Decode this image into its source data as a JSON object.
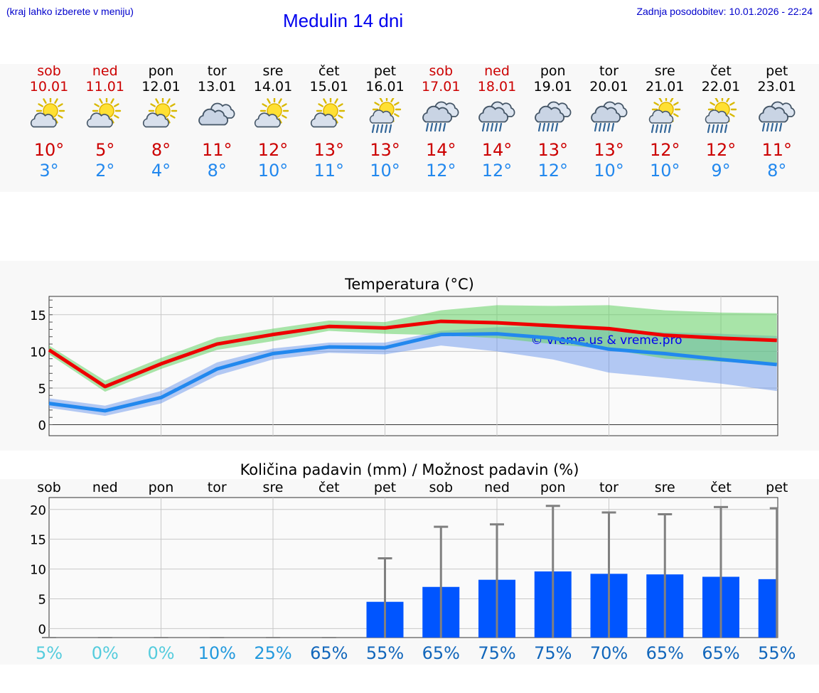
{
  "header": {
    "hint": "(kraj lahko izberete v meniju)",
    "title": "Medulin 14 dni",
    "updated": "Zadnja posodobitev: 10.01.2026 - 22:24"
  },
  "colors": {
    "weekend": "#cc0000",
    "weekday": "#000000",
    "tmax": "#cc0000",
    "tmin": "#2288ee"
  },
  "days": [
    {
      "name": "sob",
      "date": "10.01",
      "weekend": true,
      "icon": "sun-cloud-icon",
      "max": "10°",
      "min": "3°"
    },
    {
      "name": "ned",
      "date": "11.01",
      "weekend": true,
      "icon": "sun-cloud-icon",
      "max": "5°",
      "min": "2°"
    },
    {
      "name": "pon",
      "date": "12.01",
      "weekend": false,
      "icon": "sun-cloud-icon",
      "max": "8°",
      "min": "4°"
    },
    {
      "name": "tor",
      "date": "13.01",
      "weekend": false,
      "icon": "cloudy-icon",
      "max": "11°",
      "min": "8°"
    },
    {
      "name": "sre",
      "date": "14.01",
      "weekend": false,
      "icon": "sun-cloud-icon",
      "max": "12°",
      "min": "10°"
    },
    {
      "name": "čet",
      "date": "15.01",
      "weekend": false,
      "icon": "sun-cloud-icon",
      "max": "13°",
      "min": "11°"
    },
    {
      "name": "pet",
      "date": "16.01",
      "weekend": false,
      "icon": "sun-cloud-rain-icon",
      "max": "13°",
      "min": "10°"
    },
    {
      "name": "sob",
      "date": "17.01",
      "weekend": true,
      "icon": "cloud-rain-icon",
      "max": "14°",
      "min": "12°"
    },
    {
      "name": "ned",
      "date": "18.01",
      "weekend": true,
      "icon": "cloud-rain-icon",
      "max": "14°",
      "min": "12°"
    },
    {
      "name": "pon",
      "date": "19.01",
      "weekend": false,
      "icon": "cloud-rain-icon",
      "max": "13°",
      "min": "12°"
    },
    {
      "name": "tor",
      "date": "20.01",
      "weekend": false,
      "icon": "cloud-rain-icon",
      "max": "13°",
      "min": "10°"
    },
    {
      "name": "sre",
      "date": "21.01",
      "weekend": false,
      "icon": "sun-cloud-rain-icon",
      "max": "12°",
      "min": "10°"
    },
    {
      "name": "čet",
      "date": "22.01",
      "weekend": false,
      "icon": "sun-cloud-rain-icon",
      "max": "12°",
      "min": "9°"
    },
    {
      "name": "pet",
      "date": "23.01",
      "weekend": false,
      "icon": "cloud-rain-icon",
      "max": "11°",
      "min": "8°"
    }
  ],
  "chart_data": [
    {
      "type": "line",
      "title": "Temperatura (°C)",
      "watermark": "© vreme.us & vreme.pro",
      "ylim": [
        -1.5,
        17.5
      ],
      "yticks": [
        0,
        5,
        10,
        15
      ],
      "x": [
        0,
        1,
        2,
        3,
        4,
        5,
        6,
        7,
        8,
        9,
        10,
        11,
        12,
        13
      ],
      "series": [
        {
          "name": "max",
          "color": "#ee0000",
          "values": [
            10.2,
            5.2,
            8.3,
            11.0,
            12.3,
            13.4,
            13.2,
            14.1,
            13.9,
            13.5,
            13.1,
            12.2,
            11.8,
            11.5
          ],
          "band_low": [
            9.6,
            4.5,
            7.6,
            10.2,
            11.4,
            12.8,
            12.4,
            12.2,
            11.8,
            11.0,
            10.3,
            9.0,
            8.6,
            8.2
          ],
          "band_high": [
            10.8,
            6.0,
            9.1,
            11.9,
            13.1,
            14.2,
            14.0,
            15.6,
            16.3,
            16.2,
            16.3,
            15.6,
            15.3,
            15.2
          ]
        },
        {
          "name": "min",
          "color": "#2288ee",
          "values": [
            2.9,
            1.9,
            3.7,
            7.6,
            9.7,
            10.6,
            10.5,
            12.3,
            12.4,
            11.8,
            10.3,
            9.7,
            8.9,
            8.2
          ],
          "band_low": [
            2.3,
            1.2,
            2.9,
            6.7,
            8.9,
            9.8,
            9.6,
            10.8,
            10.0,
            8.9,
            7.1,
            6.4,
            5.6,
            4.6
          ],
          "band_high": [
            3.6,
            2.6,
            4.6,
            8.5,
            10.4,
            11.2,
            11.2,
            12.8,
            13.3,
            13.4,
            13.0,
            12.6,
            12.4,
            12.1
          ]
        }
      ]
    },
    {
      "type": "bar",
      "title": "Količina padavin (mm) / Možnost padavin (%)",
      "categories": [
        "sob",
        "ned",
        "pon",
        "tor",
        "sre",
        "čet",
        "pet",
        "sob",
        "ned",
        "pon",
        "tor",
        "sre",
        "čet",
        "pet"
      ],
      "ylim": [
        -1.5,
        22
      ],
      "yticks": [
        0,
        5,
        10,
        15,
        20
      ],
      "values": [
        0,
        0,
        0,
        0,
        0,
        0,
        4.5,
        7.0,
        8.2,
        9.6,
        9.2,
        9.1,
        8.7,
        8.3
      ],
      "error_high": [
        0,
        0,
        0,
        0,
        0,
        0,
        11.8,
        17.1,
        17.5,
        20.6,
        19.5,
        19.2,
        20.4,
        20.2
      ],
      "probability": [
        "5%",
        "0%",
        "0%",
        "10%",
        "25%",
        "65%",
        "55%",
        "65%",
        "75%",
        "75%",
        "70%",
        "65%",
        "65%",
        "55%"
      ],
      "probability_colors": [
        "#55ccdd",
        "#55ccdd",
        "#55ccdd",
        "#2299dd",
        "#2299dd",
        "#1166bb",
        "#1166bb",
        "#1166bb",
        "#1166bb",
        "#1166bb",
        "#1166bb",
        "#1166bb",
        "#1166bb",
        "#1166bb"
      ],
      "bar_color": "#0055ff",
      "error_color": "#808080"
    }
  ]
}
